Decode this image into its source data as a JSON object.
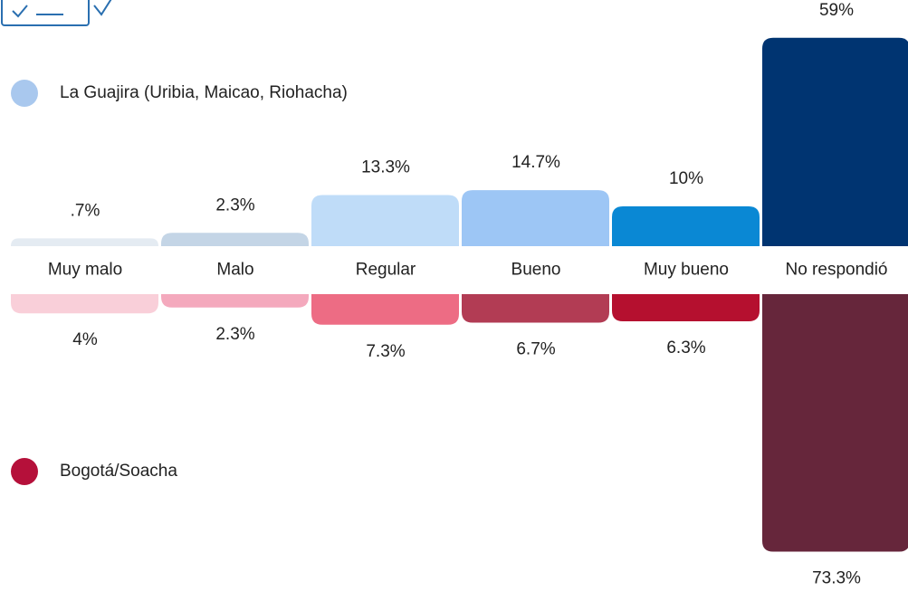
{
  "chart_data": {
    "type": "diverging_bar",
    "categories": [
      "Muy malo",
      "Malo",
      "Regular",
      "Bueno",
      "Muy bueno",
      "No respondió"
    ],
    "series": [
      {
        "name": "La Guajira (Uribia, Maicao, Riohacha)",
        "color": "#a9c8ee",
        "colors": [
          "#e4ebf2",
          "#c4d5e6",
          "#bfdcf8",
          "#9dc6f5",
          "#0a88d4",
          "#003471"
        ],
        "values": [
          0.7,
          2.3,
          13.3,
          14.7,
          10,
          59
        ],
        "value_labels": [
          ".7%",
          "2.3%",
          "13.3%",
          "14.7%",
          "10%",
          "59%"
        ]
      },
      {
        "name": "Bogotá/Soacha",
        "color": "#b5103a",
        "colors": [
          "#f9cfd9",
          "#f4a9bd",
          "#ed6c84",
          "#b23c54",
          "#b5102f",
          "#66263b"
        ],
        "values": [
          4,
          2.3,
          7.3,
          6.7,
          6.3,
          73.3
        ],
        "value_labels": [
          "4%",
          "2.3%",
          "7.3%",
          "6.7%",
          "6.3%",
          "73.3%"
        ]
      }
    ]
  }
}
